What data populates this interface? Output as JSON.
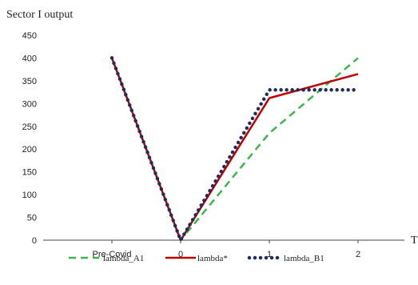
{
  "chart_data": {
    "type": "line",
    "ylabel": "Sector I output",
    "xlabel": "T",
    "categories": [
      "Pre-Covid",
      "0",
      "1",
      "2"
    ],
    "ylim": [
      0,
      450
    ],
    "yticks": [
      0,
      50,
      100,
      150,
      200,
      250,
      300,
      350,
      400,
      450
    ],
    "grid": false,
    "legend_position": "bottom",
    "series": [
      {
        "name": "lambda_A1",
        "style": "dashed",
        "color": "#3cb54a",
        "points": [
          [
            -1,
            400
          ],
          [
            0,
            0
          ],
          [
            1,
            235
          ],
          [
            2,
            400
          ]
        ]
      },
      {
        "name": "lambda*",
        "style": "solid",
        "color": "#c00000",
        "points": [
          [
            -1,
            400
          ],
          [
            0,
            0
          ],
          [
            1,
            312
          ],
          [
            2,
            365
          ]
        ]
      },
      {
        "name": "lambda_B1",
        "style": "dotted",
        "color": "#1f2d5c",
        "points": [
          [
            -1,
            400
          ],
          [
            0,
            0
          ],
          [
            1,
            330
          ],
          [
            2,
            330
          ]
        ]
      }
    ]
  }
}
